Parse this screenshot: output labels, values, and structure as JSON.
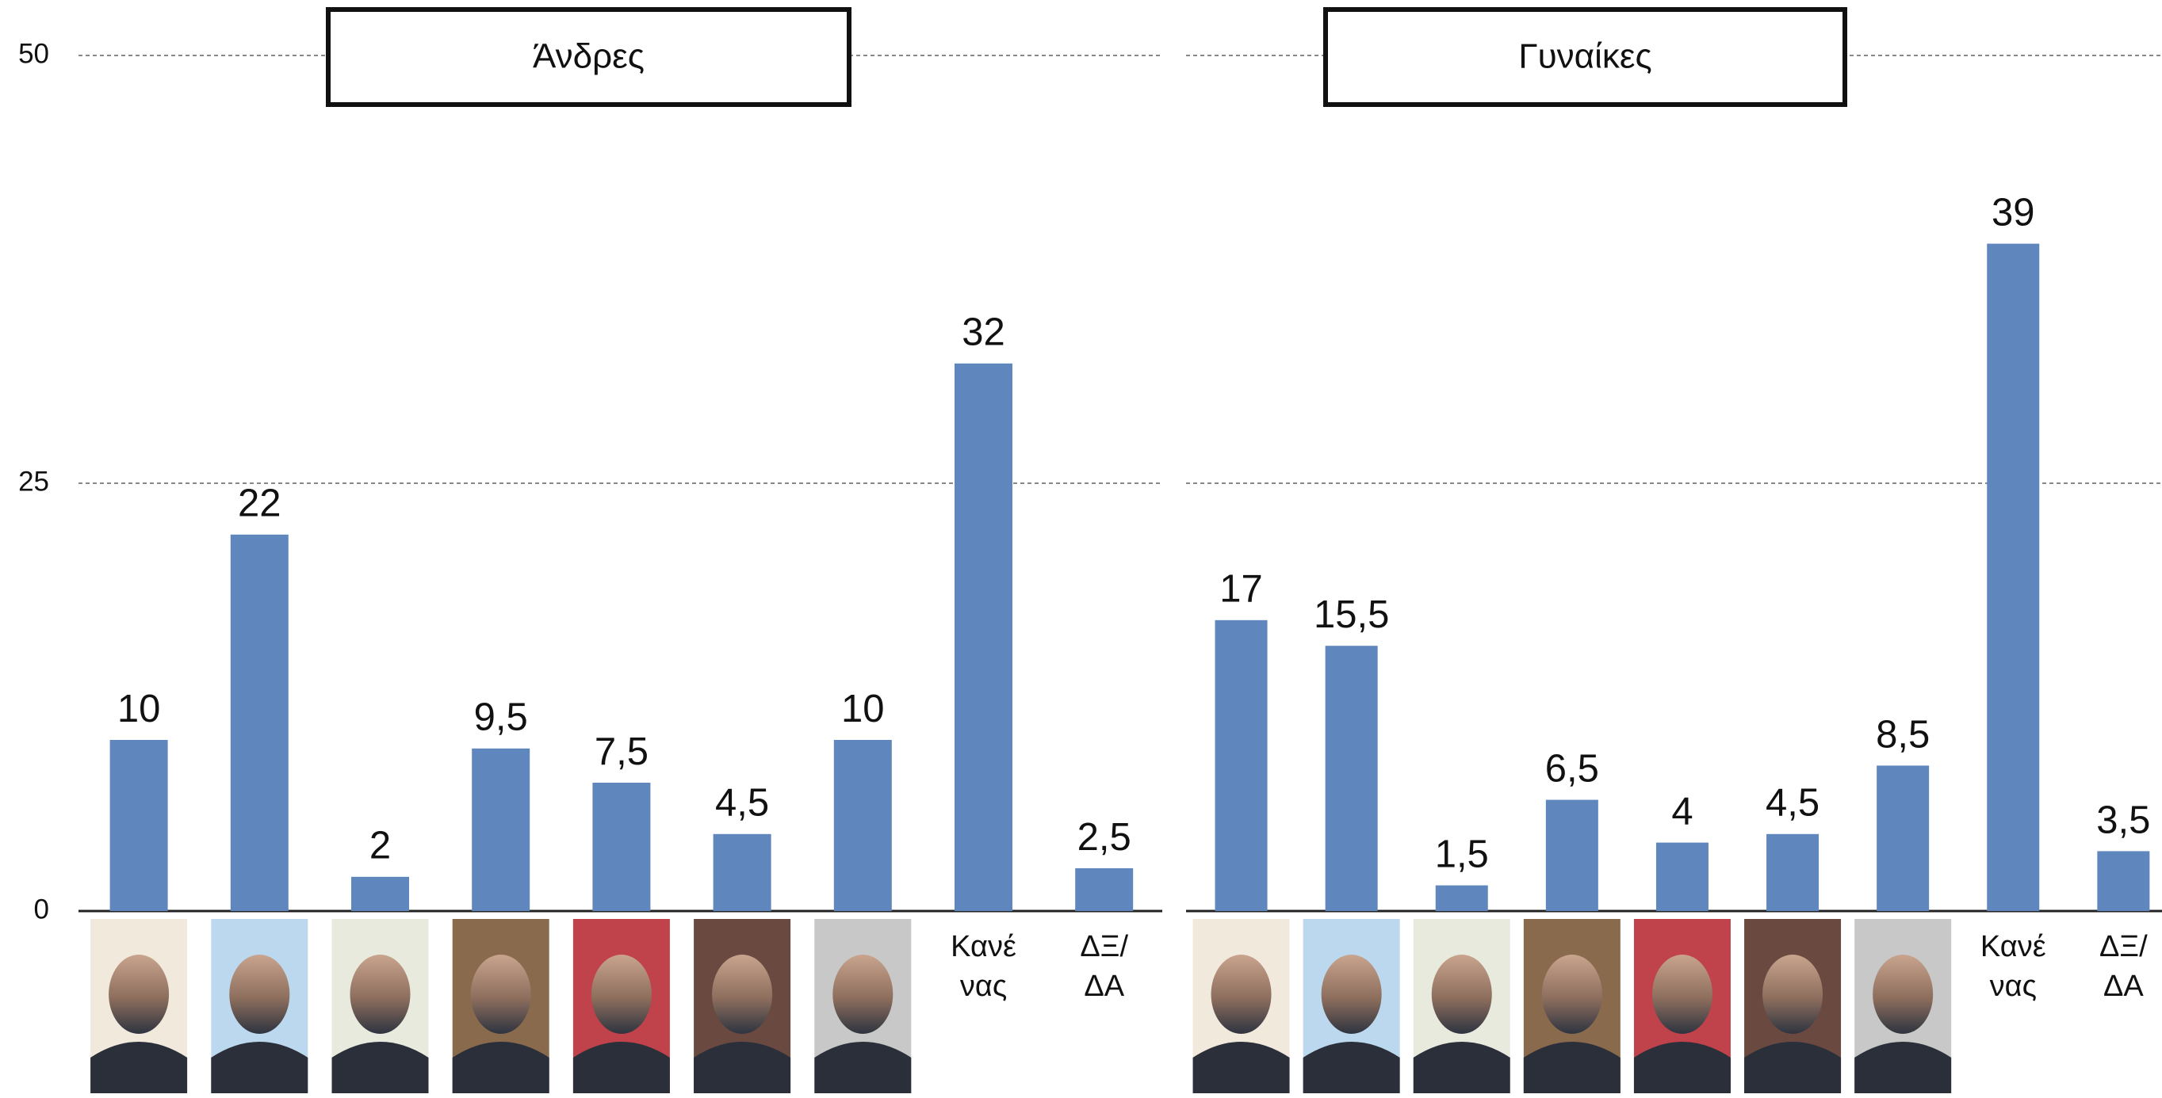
{
  "chart_data": [
    {
      "type": "bar",
      "title": "Άνδρες",
      "categories": [
        null,
        null,
        null,
        null,
        null,
        null,
        null,
        "Κανέ\nνας",
        "ΔΞ/\nΔΑ"
      ],
      "values": [
        10,
        22,
        2,
        9.5,
        7.5,
        4.5,
        10,
        32,
        2.5
      ],
      "value_labels": [
        "10",
        "22",
        "2",
        "9,5",
        "7,5",
        "4,5",
        "10",
        "32",
        "2,5"
      ],
      "color": "#5f87bd",
      "ylim": [
        0,
        50
      ],
      "yticks": [
        0,
        25,
        50
      ],
      "grid": true
    },
    {
      "type": "bar",
      "title": "Γυναίκες",
      "categories": [
        null,
        null,
        null,
        null,
        null,
        null,
        null,
        "Κανέ\nνας",
        "ΔΞ/\nΔΑ"
      ],
      "values": [
        17,
        15.5,
        1.5,
        6.5,
        4,
        4.5,
        8.5,
        39,
        3.5
      ],
      "value_labels": [
        "17",
        "15,5",
        "1,5",
        "6,5",
        "4",
        "4,5",
        "8,5",
        "39",
        "3,5"
      ],
      "color": "#5f87bd",
      "ylim": [
        0,
        50
      ],
      "yticks": [
        0,
        25,
        50
      ],
      "grid": true
    }
  ]
}
